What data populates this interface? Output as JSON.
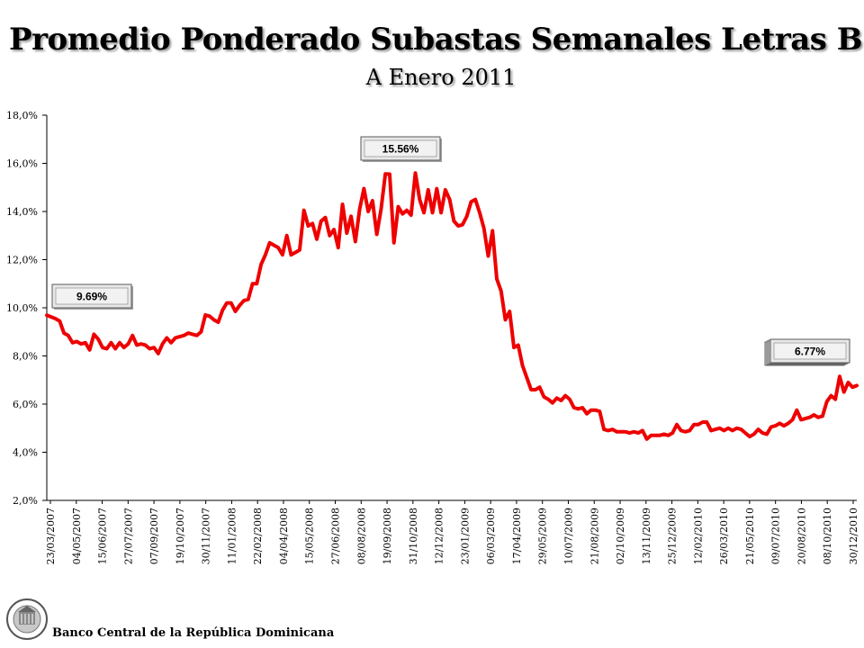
{
  "header": {
    "title": "Promedio Ponderado Subastas Semanales Letras BC",
    "subtitle": "A Enero 2011"
  },
  "footer": {
    "institution": "Banco Central de la República Dominicana"
  },
  "colors": {
    "series": "#ee0000",
    "axis": "#000000"
  },
  "chart_data": {
    "type": "line",
    "title": "Promedio Ponderado Subastas Semanales Letras BC",
    "subtitle": "A Enero 2011",
    "xlabel": "",
    "ylabel": "",
    "ylim": [
      2.0,
      18.0
    ],
    "grid": false,
    "legend": "none",
    "y_ticks": [
      "2,0%",
      "4,0%",
      "6,0%",
      "8,0%",
      "10,0%",
      "12,0%",
      "14,0%",
      "16,0%",
      "18,0%"
    ],
    "x_tick_labels": [
      "23/03/2007",
      "04/05/2007",
      "15/06/2007",
      "27/07/2007",
      "07/09/2007",
      "19/10/2007",
      "30/11/2007",
      "11/01/2008",
      "22/02/2008",
      "04/04/2008",
      "15/05/2008",
      "27/06/2008",
      "08/08/2008",
      "19/09/2008",
      "31/10/2008",
      "12/12/2008",
      "23/01/2009",
      "06/03/2009",
      "17/04/2009",
      "29/05/2009",
      "10/07/2009",
      "21/08/2009",
      "02/10/2009",
      "13/11/2009",
      "25/12/2009",
      "12/02/2010",
      "26/03/2010",
      "21/05/2010",
      "09/07/2010",
      "20/08/2010",
      "08/10/2010",
      "30/12/2010"
    ],
    "series": [
      {
        "values": [
          9.69,
          9.62,
          9.55,
          9.45,
          8.95,
          8.85,
          8.55,
          8.6,
          8.5,
          8.55,
          8.25,
          8.9,
          8.7,
          8.35,
          8.3,
          8.55,
          8.3,
          8.55,
          8.35,
          8.5,
          8.85,
          8.45,
          8.5,
          8.45,
          8.3,
          8.35,
          8.1,
          8.5,
          8.75,
          8.55,
          8.75,
          8.8,
          8.85,
          8.95,
          8.9,
          8.85,
          9.0,
          9.7,
          9.65,
          9.5,
          9.4,
          9.9,
          10.2,
          10.2,
          9.85,
          10.1,
          10.3,
          10.35,
          11.0,
          11.0,
          11.8,
          12.2,
          12.7,
          12.6,
          12.5,
          12.2,
          13.0,
          12.2,
          12.3,
          12.4,
          14.05,
          13.4,
          13.5,
          12.85,
          13.6,
          13.75,
          13.0,
          13.25,
          12.5,
          14.3,
          13.1,
          13.8,
          12.75,
          14.1,
          14.95,
          14.0,
          14.45,
          13.05,
          14.1,
          15.56,
          15.55,
          12.7,
          14.2,
          13.9,
          14.05,
          13.85,
          15.6,
          14.5,
          13.95,
          14.9,
          13.95,
          14.95,
          13.95,
          14.9,
          14.5,
          13.6,
          13.4,
          13.45,
          13.8,
          14.4,
          14.5,
          13.95,
          13.3,
          12.15,
          13.2,
          11.2,
          10.7,
          9.5,
          9.85,
          8.35,
          8.45,
          7.6,
          7.1,
          6.6,
          6.6,
          6.7,
          6.3,
          6.2,
          6.05,
          6.25,
          6.15,
          6.35,
          6.2,
          5.85,
          5.8,
          5.85,
          5.6,
          5.75,
          5.75,
          5.7,
          4.95,
          4.9,
          4.95,
          4.85,
          4.85,
          4.85,
          4.8,
          4.85,
          4.8,
          4.9,
          4.55,
          4.7,
          4.7,
          4.7,
          4.75,
          4.7,
          4.8,
          5.15,
          4.9,
          4.85,
          4.9,
          5.15,
          5.15,
          5.25,
          5.25,
          4.9,
          4.95,
          5.0,
          4.9,
          5.0,
          4.9,
          5.0,
          4.95,
          4.8,
          4.65,
          4.75,
          4.95,
          4.8,
          4.75,
          5.05,
          5.1,
          5.2,
          5.1,
          5.2,
          5.35,
          5.75,
          5.35,
          5.4,
          5.45,
          5.55,
          5.45,
          5.5,
          6.1,
          6.35,
          6.2,
          7.15,
          6.5,
          6.9,
          6.7,
          6.77
        ]
      }
    ],
    "annotations": [
      {
        "label": "9.69%",
        "value": 9.69,
        "point": "start"
      },
      {
        "label": "15.56%",
        "value": 15.56,
        "point": "peak"
      },
      {
        "label": "6.77%",
        "value": 6.77,
        "point": "end"
      }
    ]
  }
}
